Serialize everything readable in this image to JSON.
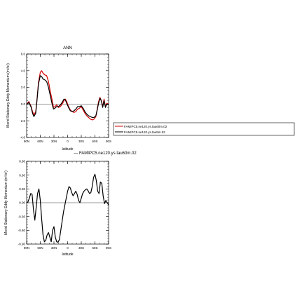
{
  "chart_data": [
    {
      "type": "line",
      "title": "ANN",
      "xlabel": "latitude",
      "ylabel": "Merid Stationary Eddy Momentum (m²/s²)",
      "xlim": [
        90,
        -90
      ],
      "ylim": [
        -4.0,
        6.0
      ],
      "x_ticks": [
        90,
        60,
        30,
        0,
        -30,
        -60,
        -90
      ],
      "x_tick_labels": [
        "90N",
        "60N",
        "30N",
        "0",
        "30S",
        "60S",
        "90S"
      ],
      "y_ticks": [
        -4,
        -2,
        0,
        2,
        4,
        6
      ],
      "y_tick_labels": [
        "-4.0",
        "-2.0",
        "0.0",
        "2.0",
        "4.0",
        "6.0"
      ],
      "x": [
        90,
        85,
        80,
        77,
        74,
        70,
        67,
        64,
        60,
        57,
        54,
        50,
        46,
        42,
        38,
        34,
        31,
        28,
        24,
        20,
        16,
        12,
        8,
        5,
        2,
        -2,
        -6,
        -10,
        -14,
        -18,
        -22,
        -26,
        -30,
        -34,
        -38,
        -42,
        -46,
        -50,
        -54,
        -58,
        -62,
        -65,
        -68,
        -71,
        -74,
        -77,
        -80,
        -83,
        -86,
        -90
      ],
      "series": [
        {
          "name": "FAMIPC5.ne120.ys.tau60m.02",
          "color": "#d40000",
          "values": [
            0.0,
            0.3,
            -0.3,
            -0.9,
            -1.3,
            -0.9,
            0.7,
            2.6,
            3.8,
            4.0,
            3.7,
            3.5,
            3.4,
            2.7,
            1.5,
            0.5,
            -0.4,
            -0.3,
            -0.1,
            -0.4,
            -0.3,
            0.0,
            0.4,
            0.6,
            0.3,
            -0.3,
            -0.7,
            -0.9,
            -1.0,
            -0.9,
            -0.6,
            -0.5,
            -0.3,
            -0.7,
            -1.1,
            -1.4,
            -1.6,
            -1.8,
            -1.9,
            -1.8,
            -1.5,
            -0.6,
            0.3,
            0.8,
            0.4,
            -0.3,
            0.6,
            -0.3,
            0.1,
            0.0
          ]
        },
        {
          "name": "FAMIPC5.ne120.ys.tau5m.02",
          "color": "#000000",
          "values": [
            -0.1,
            0.2,
            -0.4,
            -1.1,
            -1.5,
            -1.1,
            0.6,
            2.4,
            3.4,
            3.3,
            3.0,
            2.9,
            2.7,
            2.0,
            1.0,
            0.0,
            -0.6,
            -0.5,
            -0.3,
            -0.3,
            -0.1,
            0.2,
            0.6,
            0.5,
            0.1,
            -0.4,
            -0.8,
            -0.9,
            -0.8,
            -0.6,
            -0.3,
            -0.3,
            -0.2,
            -0.5,
            -0.9,
            -1.2,
            -1.4,
            -1.5,
            -1.6,
            -1.6,
            -1.4,
            -0.7,
            0.1,
            0.7,
            0.4,
            -0.4,
            0.4,
            -0.4,
            0.0,
            -0.1
          ]
        }
      ],
      "legend": {
        "placement": "right",
        "entries": [
          "FAMIPC5.ne120.ys.tau60m.02",
          "FAMIPC5.ne120.ys.tau5m.02"
        ]
      }
    },
    {
      "type": "line",
      "title": "— FAMIPC5.ne120.ys.tau60m.02",
      "xlabel": "latitude",
      "ylabel": "Merid Stationary Eddy Momentum (m²/s²)",
      "xlim": [
        90,
        -90
      ],
      "ylim": [
        -0.9,
        0.9
      ],
      "x_ticks": [
        90,
        60,
        30,
        0,
        -30,
        -60,
        -90
      ],
      "x_tick_labels": [
        "90N",
        "60N",
        "30N",
        "0",
        "30S",
        "60S",
        "90S"
      ],
      "y_ticks": [
        -0.9,
        -0.6,
        -0.3,
        0.0,
        0.3,
        0.6,
        0.9
      ],
      "y_tick_labels": [
        "-0.90",
        "-0.60",
        "-0.30",
        "0.00",
        "0.30",
        "0.60",
        "0.90"
      ],
      "x": [
        90,
        87,
        84,
        81,
        78,
        75,
        72,
        69,
        66,
        63,
        60,
        57,
        54,
        51,
        48,
        45,
        42,
        39,
        36,
        33,
        30,
        27,
        24,
        21,
        18,
        15,
        12,
        9,
        6,
        3,
        0,
        -3,
        -6,
        -9,
        -12,
        -15,
        -18,
        -21,
        -24,
        -27,
        -30,
        -33,
        -36,
        -39,
        -42,
        -45,
        -48,
        -51,
        -54,
        -57,
        -60,
        -63,
        -66,
        -69,
        -72,
        -75,
        -78,
        -81,
        -84,
        -87,
        -90
      ],
      "series": [
        {
          "name": "FAMIPC5.ne120.ys.tau60m.02",
          "color": "#000000",
          "values": [
            0.0,
            0.02,
            0.1,
            0.2,
            0.18,
            -0.15,
            -0.38,
            -0.1,
            0.2,
            0.3,
            0.05,
            -0.35,
            -0.7,
            -0.85,
            -0.82,
            -0.7,
            -0.65,
            -0.75,
            -0.85,
            -0.6,
            -0.52,
            -0.75,
            -0.85,
            -0.86,
            -0.8,
            -0.6,
            -0.4,
            -0.2,
            -0.05,
            0.1,
            0.25,
            0.35,
            0.32,
            0.22,
            0.15,
            0.2,
            0.25,
            0.18,
            0.05,
            0.0,
            0.1,
            0.2,
            0.25,
            0.28,
            0.3,
            0.26,
            0.2,
            0.22,
            0.35,
            0.55,
            0.62,
            0.48,
            0.25,
            0.2,
            0.45,
            0.42,
            0.15,
            -0.02,
            0.05,
            0.0,
            -0.05
          ]
        }
      ]
    }
  ]
}
